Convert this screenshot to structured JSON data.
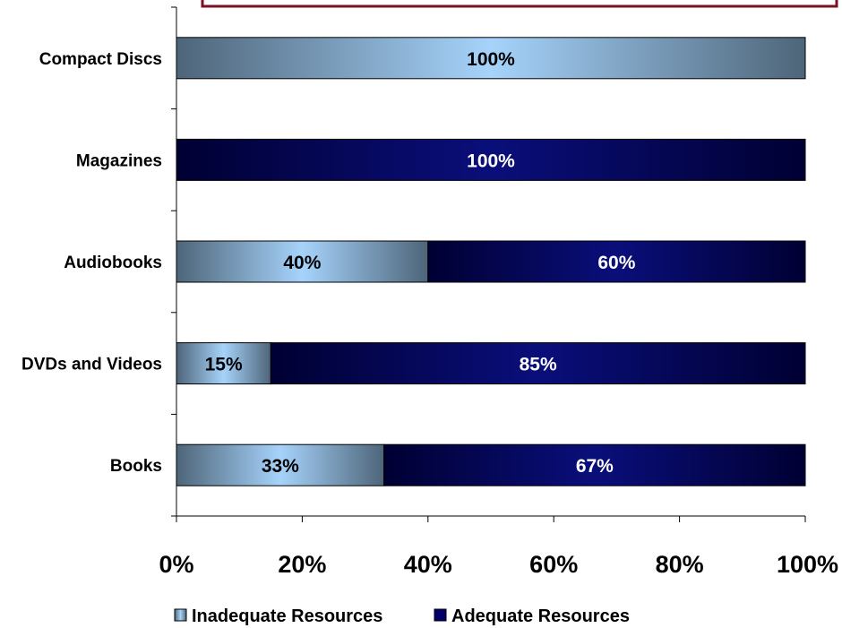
{
  "chart_data": {
    "type": "bar",
    "orientation": "horizontal",
    "stacked": true,
    "percent": true,
    "categories": [
      "Books",
      "DVDs and Videos",
      "Audiobooks",
      "Magazines",
      "Compact Discs"
    ],
    "series": [
      {
        "name": "Inadequate Resources",
        "values": [
          33,
          15,
          40,
          0,
          100
        ],
        "color": "#93c4f0"
      },
      {
        "name": "Adequate Resources",
        "values": [
          67,
          85,
          60,
          100,
          0
        ],
        "color": "#000066"
      }
    ],
    "xlim": [
      0,
      100
    ],
    "x_ticks": [
      "0%",
      "20%",
      "40%",
      "60%",
      "80%",
      "100%"
    ],
    "data_labels": [
      [
        "33%",
        "15%",
        "40%",
        "",
        "100%"
      ],
      [
        "67%",
        "85%",
        "60%",
        "100%",
        ""
      ]
    ],
    "legend_position": "bottom",
    "grid": false
  },
  "legend": {
    "items": [
      "Inadequate Resources",
      "Adequate Resources"
    ]
  },
  "colors": {
    "title_box_border": "#7a1020",
    "inadequate_light": "#a6d3fb",
    "inadequate_dark": "#4e6579",
    "adequate_light": "#0a0e7a",
    "adequate_dark": "#000033"
  }
}
